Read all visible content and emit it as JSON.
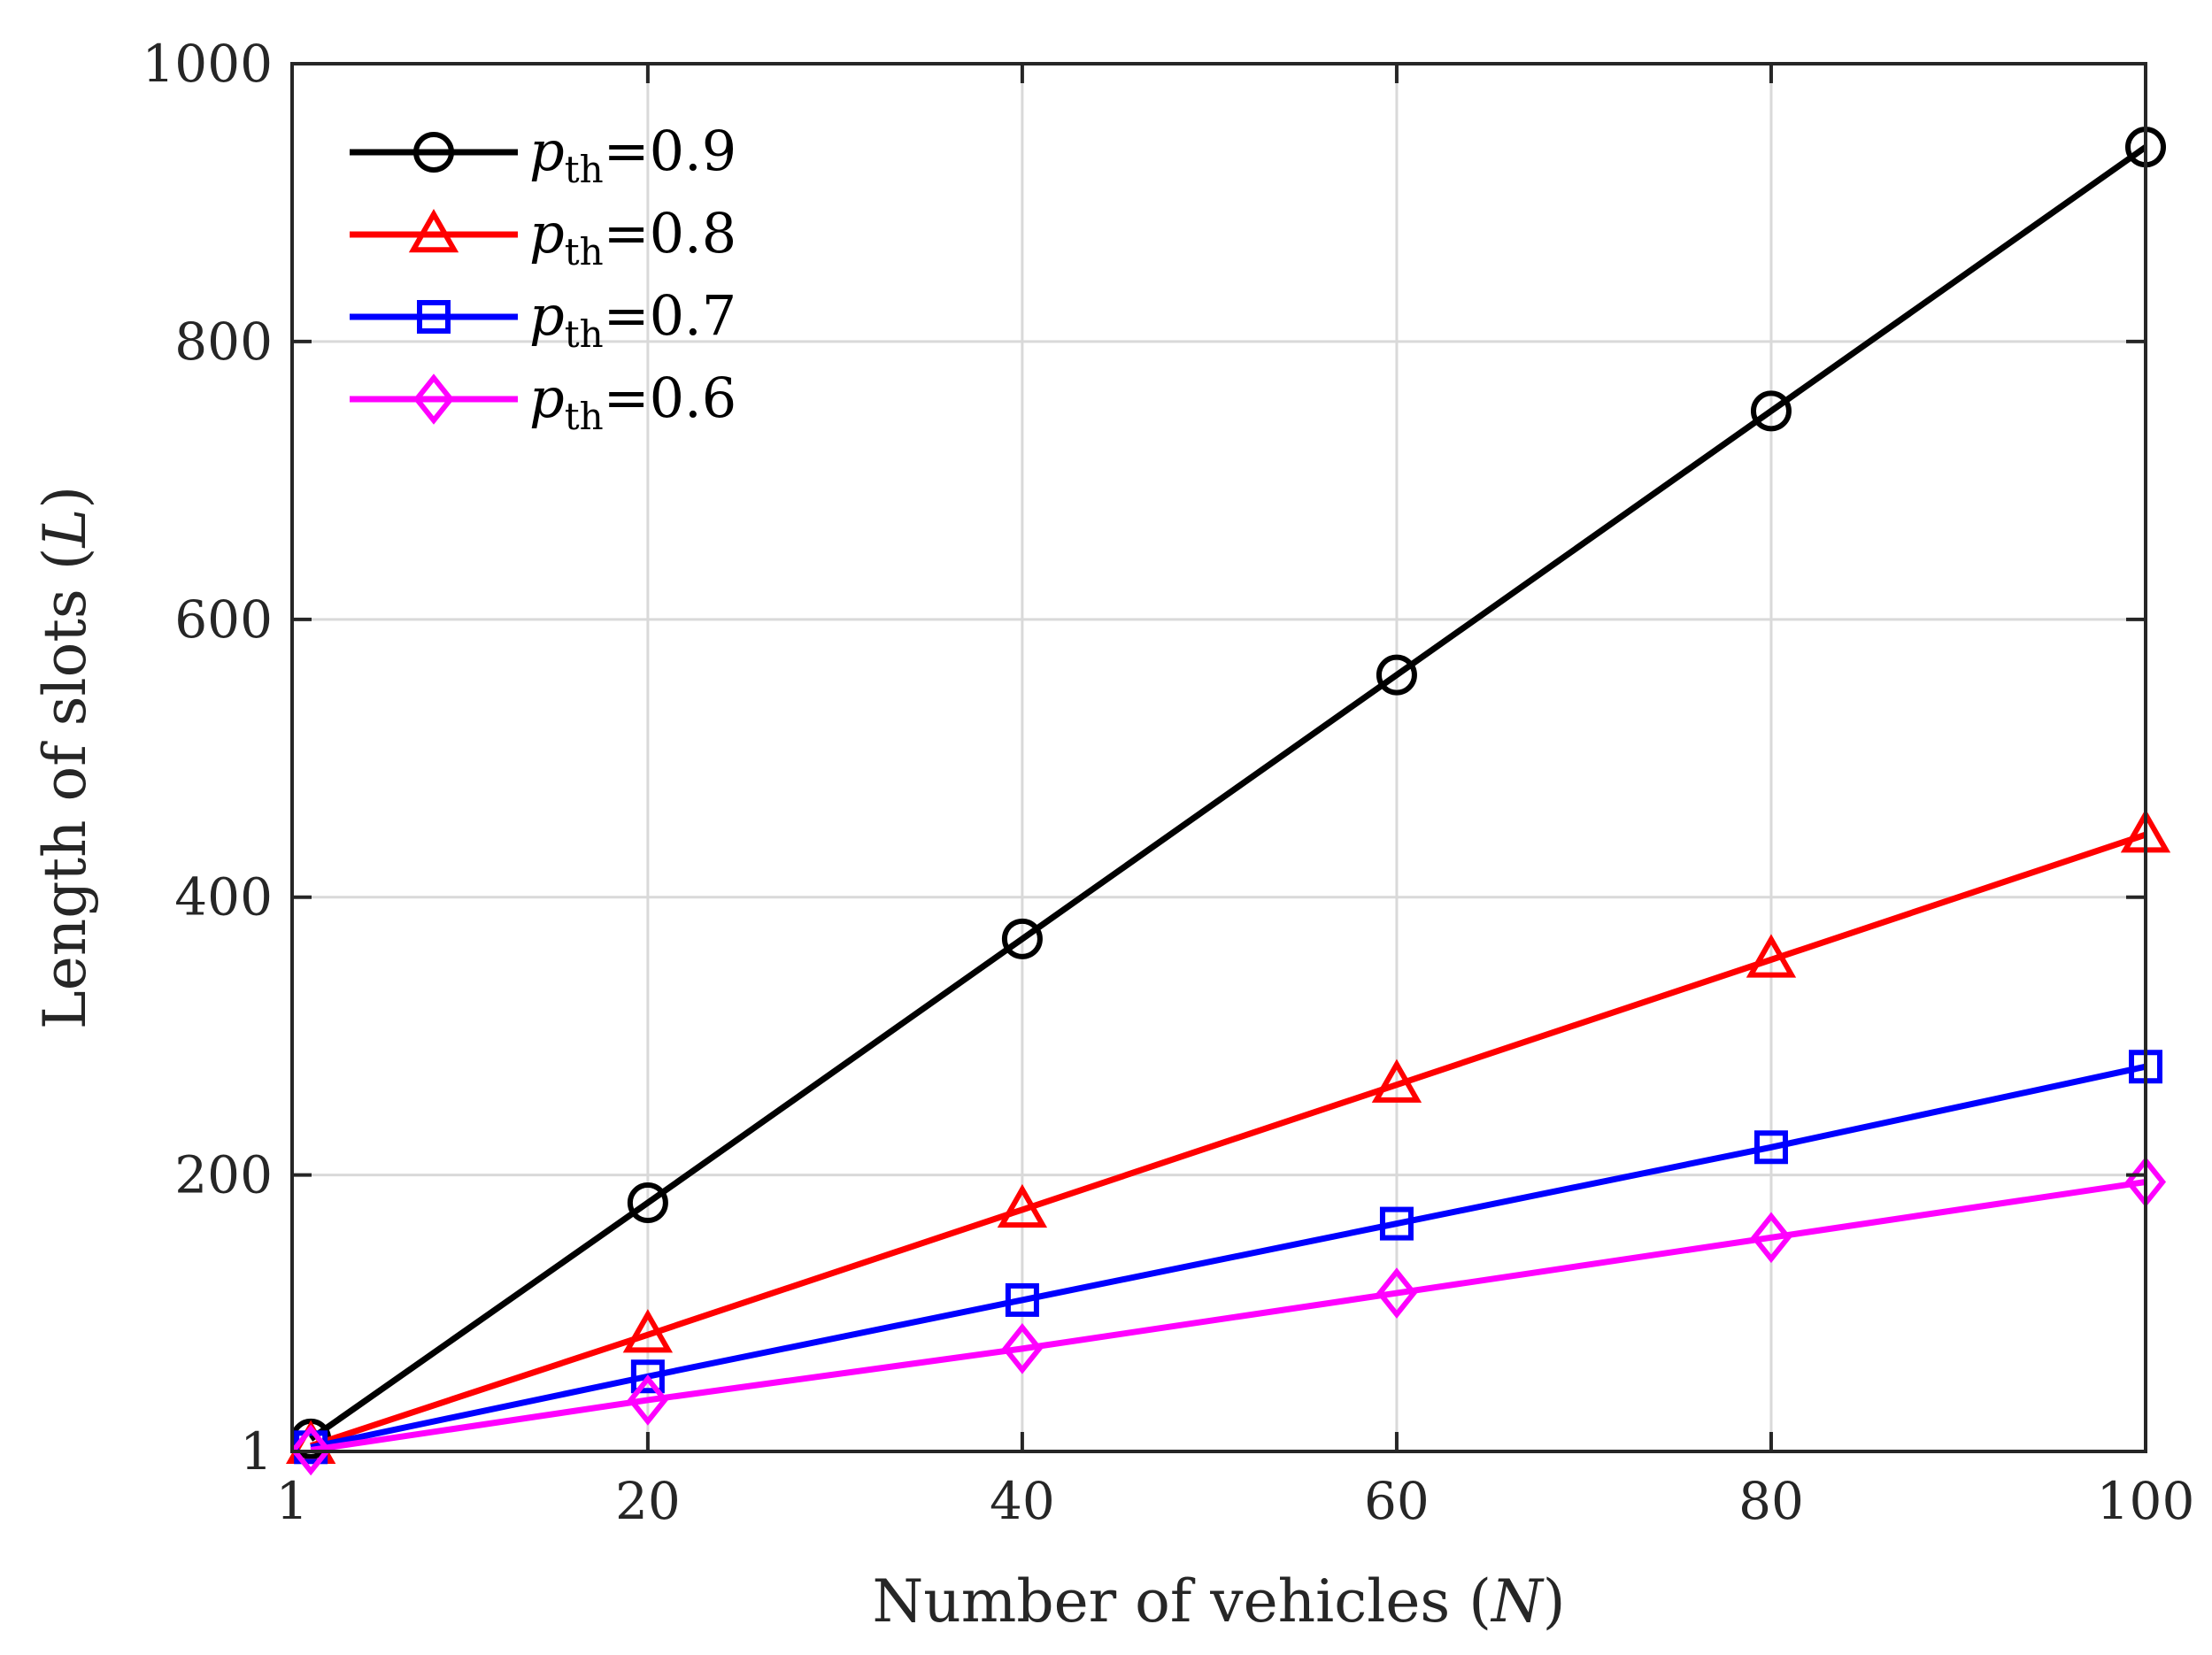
{
  "chart_data": {
    "type": "line",
    "x": [
      2,
      20,
      40,
      60,
      80,
      100
    ],
    "series": [
      {
        "name": "0.9",
        "marker": "circle",
        "color": "#000000",
        "values": [
          10,
          180,
          370,
          560,
          750,
          940
        ]
      },
      {
        "name": "0.8",
        "marker": "triangle",
        "color": "#ff0000",
        "values": [
          5,
          85,
          175,
          265,
          355,
          445
        ]
      },
      {
        "name": "0.7",
        "marker": "square",
        "color": "#0000ff",
        "values": [
          4,
          55,
          110,
          165,
          220,
          278
        ]
      },
      {
        "name": "0.6",
        "marker": "diamond",
        "color": "#ff00ff",
        "values": [
          2,
          38,
          75,
          115,
          155,
          195
        ]
      }
    ],
    "legend_prefix": "p",
    "legend_subscript": "th",
    "legend_equals": "=",
    "xlabel_text": "Number of vehicles (",
    "xlabel_var": "N",
    "ylabel_text": "Length of slots (",
    "ylabel_var": "L",
    "label_close": ")",
    "xlim": [
      1,
      100
    ],
    "ylim": [
      1,
      1000
    ],
    "xticks": [
      1,
      20,
      40,
      60,
      80,
      100
    ],
    "yticks": [
      1,
      200,
      400,
      600,
      800,
      1000
    ],
    "grid": true,
    "legend_position": "top-left"
  }
}
